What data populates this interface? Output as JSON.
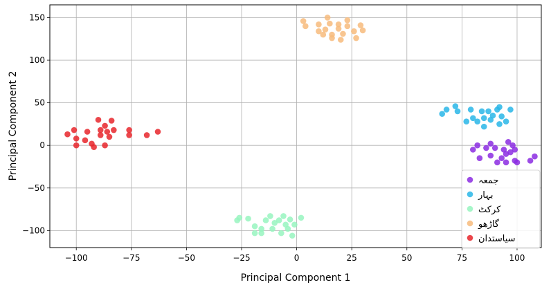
{
  "chart_data": {
    "type": "scatter",
    "xlabel": "Principal Component 1",
    "ylabel": "Principal Component 2",
    "xlim": [
      -112,
      111
    ],
    "ylim": [
      -120,
      165
    ],
    "x_ticks": [
      -100,
      -75,
      -50,
      -25,
      0,
      25,
      50,
      75,
      100
    ],
    "y_ticks": [
      -100,
      -50,
      0,
      50,
      100,
      150
    ],
    "x_tick_labels": [
      "−100",
      "−75",
      "−50",
      "−25",
      "0",
      "25",
      "50",
      "75",
      "100"
    ],
    "y_tick_labels": [
      "−100",
      "−50",
      "0",
      "50",
      "100",
      "150"
    ],
    "grid": true,
    "legend_position": "lower-right",
    "series": [
      {
        "name": "جمعہ",
        "color": "#8b2be2",
        "points": [
          [
            80,
            -5
          ],
          [
            82,
            0
          ],
          [
            83,
            -15
          ],
          [
            86,
            -3
          ],
          [
            88,
            2
          ],
          [
            88,
            -12
          ],
          [
            90,
            -3
          ],
          [
            91,
            -20
          ],
          [
            93,
            -15
          ],
          [
            94,
            -5
          ],
          [
            95,
            -20
          ],
          [
            95,
            -10
          ],
          [
            96,
            4
          ],
          [
            97,
            -8
          ],
          [
            98,
            0
          ],
          [
            99,
            -18
          ],
          [
            99,
            -5
          ],
          [
            100,
            -20
          ],
          [
            106,
            -18
          ],
          [
            108,
            -13
          ]
        ]
      },
      {
        "name": "بہار",
        "color": "#29b6e8",
        "points": [
          [
            66,
            37
          ],
          [
            68,
            42
          ],
          [
            72,
            46
          ],
          [
            73,
            40
          ],
          [
            77,
            28
          ],
          [
            79,
            42
          ],
          [
            80,
            32
          ],
          [
            82,
            28
          ],
          [
            84,
            40
          ],
          [
            85,
            22
          ],
          [
            85,
            32
          ],
          [
            87,
            40
          ],
          [
            88,
            30
          ],
          [
            89,
            35
          ],
          [
            91,
            42
          ],
          [
            92,
            25
          ],
          [
            92,
            45
          ],
          [
            93,
            34
          ],
          [
            95,
            28
          ],
          [
            97,
            42
          ]
        ]
      },
      {
        "name": "کرکٹ",
        "color": "#98f5c0",
        "points": [
          [
            -26,
            -85
          ],
          [
            -27,
            -88
          ],
          [
            -22,
            -86
          ],
          [
            -19,
            -95
          ],
          [
            -19,
            -103
          ],
          [
            -16,
            -98
          ],
          [
            -16,
            -103
          ],
          [
            -14,
            -88
          ],
          [
            -12,
            -83
          ],
          [
            -11,
            -98
          ],
          [
            -10,
            -91
          ],
          [
            -8,
            -88
          ],
          [
            -7,
            -103
          ],
          [
            -6,
            -83
          ],
          [
            -5,
            -93
          ],
          [
            -4,
            -98
          ],
          [
            -3,
            -87
          ],
          [
            -2,
            -106
          ],
          [
            -1,
            -93
          ],
          [
            2,
            -85
          ]
        ]
      },
      {
        "name": "گاڑھو",
        "color": "#f7bb7d",
        "points": [
          [
            3,
            146
          ],
          [
            4,
            140
          ],
          [
            10,
            134
          ],
          [
            10,
            142
          ],
          [
            12,
            130
          ],
          [
            13,
            136
          ],
          [
            14,
            150
          ],
          [
            15,
            143
          ],
          [
            16,
            130
          ],
          [
            16,
            126
          ],
          [
            19,
            142
          ],
          [
            19,
            137
          ],
          [
            20,
            124
          ],
          [
            21,
            131
          ],
          [
            23,
            140
          ],
          [
            23,
            147
          ],
          [
            26,
            134
          ],
          [
            27,
            126
          ],
          [
            29,
            141
          ],
          [
            30,
            135
          ]
        ]
      },
      {
        "name": "سیاستدان",
        "color": "#e8262b",
        "points": [
          [
            -104,
            13
          ],
          [
            -101,
            18
          ],
          [
            -100,
            8
          ],
          [
            -100,
            0
          ],
          [
            -96,
            6
          ],
          [
            -95,
            16
          ],
          [
            -93,
            2
          ],
          [
            -92,
            -2
          ],
          [
            -90,
            30
          ],
          [
            -89,
            12
          ],
          [
            -89,
            18
          ],
          [
            -87,
            23
          ],
          [
            -87,
            0
          ],
          [
            -86,
            16
          ],
          [
            -85,
            10
          ],
          [
            -84,
            29
          ],
          [
            -83,
            18
          ],
          [
            -76,
            18
          ],
          [
            -76,
            12
          ],
          [
            -68,
            12
          ],
          [
            -63,
            16
          ]
        ]
      }
    ]
  }
}
